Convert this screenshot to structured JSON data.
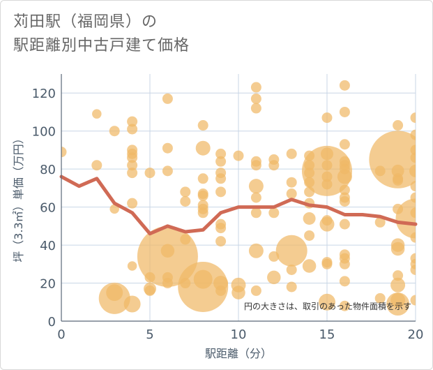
{
  "title_line1": "苅田駅（福岡県）の",
  "title_line2": "駅距離別中古戸建て価格",
  "chart_data": {
    "type": "scatter",
    "xlabel": "駅距離（分）",
    "ylabel": "坪（3.3㎡）単価（万円）",
    "xlim": [
      0,
      20
    ],
    "ylim": [
      0,
      130
    ],
    "xticks": [
      0,
      5,
      10,
      15,
      20
    ],
    "yticks": [
      0,
      20,
      40,
      60,
      80,
      100,
      120
    ],
    "grid": true,
    "annotation": "円の大きさは、取引のあった物件面積を示す",
    "colors": {
      "bubble": "#f0b967",
      "line": "#d06a55",
      "grid": "#c8d6e6",
      "axis": "#4a5a6a"
    },
    "line": {
      "x": [
        0,
        1,
        2,
        3,
        4,
        5,
        6,
        7,
        8,
        9,
        10,
        11,
        12,
        13,
        14,
        15,
        16,
        17,
        18,
        19,
        20
      ],
      "y": [
        76,
        71,
        75,
        62,
        57,
        46,
        50,
        47,
        48,
        57,
        60,
        60,
        60,
        64,
        61,
        60,
        56,
        56,
        55,
        52,
        51
      ]
    },
    "points": [
      {
        "x": 0,
        "y": 89,
        "s": 1
      },
      {
        "x": 2,
        "y": 109,
        "s": 0.9
      },
      {
        "x": 2,
        "y": 82,
        "s": 1
      },
      {
        "x": 3,
        "y": 100,
        "s": 1
      },
      {
        "x": 3,
        "y": 59,
        "s": 0.9
      },
      {
        "x": 3,
        "y": 15,
        "s": 1.6
      },
      {
        "x": 3,
        "y": 12,
        "s": 3
      },
      {
        "x": 4,
        "y": 105,
        "s": 1
      },
      {
        "x": 4,
        "y": 101,
        "s": 1
      },
      {
        "x": 4,
        "y": 90,
        "s": 1
      },
      {
        "x": 4,
        "y": 88,
        "s": 1
      },
      {
        "x": 4,
        "y": 86,
        "s": 1
      },
      {
        "x": 4,
        "y": 82,
        "s": 1
      },
      {
        "x": 4,
        "y": 78,
        "s": 1
      },
      {
        "x": 4,
        "y": 62,
        "s": 1
      },
      {
        "x": 4,
        "y": 29,
        "s": 0.9
      },
      {
        "x": 4,
        "y": 9,
        "s": 1.6
      },
      {
        "x": 5,
        "y": 78,
        "s": 1
      },
      {
        "x": 5,
        "y": 23,
        "s": 1
      },
      {
        "x": 5,
        "y": 17,
        "s": 1.2
      },
      {
        "x": 5,
        "y": 16,
        "s": 1
      },
      {
        "x": 6,
        "y": 117,
        "s": 1
      },
      {
        "x": 6,
        "y": 91,
        "s": 1
      },
      {
        "x": 6,
        "y": 79,
        "s": 1
      },
      {
        "x": 6,
        "y": 37,
        "s": 1.3
      },
      {
        "x": 6,
        "y": 34,
        "s": 5.8
      },
      {
        "x": 6,
        "y": 23,
        "s": 1
      },
      {
        "x": 6,
        "y": 20,
        "s": 1
      },
      {
        "x": 7,
        "y": 68,
        "s": 1
      },
      {
        "x": 7,
        "y": 63,
        "s": 1
      },
      {
        "x": 7,
        "y": 43,
        "s": 1
      },
      {
        "x": 7,
        "y": 20,
        "s": 1
      },
      {
        "x": 8,
        "y": 103,
        "s": 1
      },
      {
        "x": 8,
        "y": 91,
        "s": 1.4
      },
      {
        "x": 8,
        "y": 75,
        "s": 1
      },
      {
        "x": 8,
        "y": 67,
        "s": 1
      },
      {
        "x": 8,
        "y": 66,
        "s": 1
      },
      {
        "x": 8,
        "y": 61,
        "s": 1
      },
      {
        "x": 8,
        "y": 59,
        "s": 1
      },
      {
        "x": 8,
        "y": 57,
        "s": 1
      },
      {
        "x": 8,
        "y": 22,
        "s": 1.8
      },
      {
        "x": 8,
        "y": 18,
        "s": 4.8
      },
      {
        "x": 9,
        "y": 88,
        "s": 1
      },
      {
        "x": 9,
        "y": 84,
        "s": 1
      },
      {
        "x": 9,
        "y": 78,
        "s": 1
      },
      {
        "x": 9,
        "y": 75,
        "s": 1
      },
      {
        "x": 9,
        "y": 68,
        "s": 1
      },
      {
        "x": 9,
        "y": 51,
        "s": 1
      },
      {
        "x": 9,
        "y": 49,
        "s": 1
      },
      {
        "x": 9,
        "y": 42,
        "s": 1
      },
      {
        "x": 9,
        "y": 20,
        "s": 1.4
      },
      {
        "x": 9,
        "y": 16,
        "s": 1
      },
      {
        "x": 10,
        "y": 87,
        "s": 1
      },
      {
        "x": 10,
        "y": 19,
        "s": 1.4
      },
      {
        "x": 10,
        "y": 15,
        "s": 1.3
      },
      {
        "x": 11,
        "y": 123,
        "s": 1
      },
      {
        "x": 11,
        "y": 117,
        "s": 1
      },
      {
        "x": 11,
        "y": 112,
        "s": 1
      },
      {
        "x": 11,
        "y": 84,
        "s": 1
      },
      {
        "x": 11,
        "y": 82,
        "s": 1
      },
      {
        "x": 11,
        "y": 71,
        "s": 1.4
      },
      {
        "x": 11,
        "y": 65,
        "s": 1
      },
      {
        "x": 11,
        "y": 57,
        "s": 1
      },
      {
        "x": 11,
        "y": 37,
        "s": 1.4
      },
      {
        "x": 11,
        "y": 16,
        "s": 1
      },
      {
        "x": 12,
        "y": 85,
        "s": 1
      },
      {
        "x": 12,
        "y": 82,
        "s": 1
      },
      {
        "x": 12,
        "y": 57,
        "s": 1
      },
      {
        "x": 12,
        "y": 34,
        "s": 1
      },
      {
        "x": 12,
        "y": 23,
        "s": 1.3
      },
      {
        "x": 13,
        "y": 88,
        "s": 1
      },
      {
        "x": 13,
        "y": 73,
        "s": 1
      },
      {
        "x": 13,
        "y": 67,
        "s": 1
      },
      {
        "x": 13,
        "y": 37,
        "s": 3
      },
      {
        "x": 13,
        "y": 27,
        "s": 1
      },
      {
        "x": 13,
        "y": 18,
        "s": 1
      },
      {
        "x": 14,
        "y": 87,
        "s": 1
      },
      {
        "x": 14,
        "y": 82,
        "s": 1
      },
      {
        "x": 14,
        "y": 78,
        "s": 1
      },
      {
        "x": 14,
        "y": 73,
        "s": 1
      },
      {
        "x": 14,
        "y": 68,
        "s": 1
      },
      {
        "x": 14,
        "y": 62,
        "s": 1
      },
      {
        "x": 14,
        "y": 54,
        "s": 1.2
      },
      {
        "x": 14,
        "y": 45,
        "s": 1
      },
      {
        "x": 14,
        "y": 29,
        "s": 1.3
      },
      {
        "x": 15,
        "y": 107,
        "s": 1
      },
      {
        "x": 15,
        "y": 88,
        "s": 1.2
      },
      {
        "x": 15,
        "y": 82,
        "s": 1
      },
      {
        "x": 15,
        "y": 79,
        "s": 4.8
      },
      {
        "x": 15,
        "y": 76,
        "s": 1
      },
      {
        "x": 15,
        "y": 72,
        "s": 1
      },
      {
        "x": 15,
        "y": 53,
        "s": 1
      },
      {
        "x": 15,
        "y": 51,
        "s": 1.4
      },
      {
        "x": 15,
        "y": 31,
        "s": 1
      },
      {
        "x": 15,
        "y": 30,
        "s": 1
      },
      {
        "x": 15,
        "y": 10,
        "s": 1.6
      },
      {
        "x": 16,
        "y": 124,
        "s": 1
      },
      {
        "x": 16,
        "y": 110,
        "s": 1
      },
      {
        "x": 16,
        "y": 93,
        "s": 1
      },
      {
        "x": 16,
        "y": 84,
        "s": 1
      },
      {
        "x": 16,
        "y": 82,
        "s": 1
      },
      {
        "x": 16,
        "y": 80,
        "s": 1
      },
      {
        "x": 16,
        "y": 76,
        "s": 1.4
      },
      {
        "x": 16,
        "y": 69,
        "s": 1
      },
      {
        "x": 16,
        "y": 65,
        "s": 1
      },
      {
        "x": 16,
        "y": 63,
        "s": 1
      },
      {
        "x": 16,
        "y": 51,
        "s": 1
      },
      {
        "x": 16,
        "y": 35,
        "s": 1
      },
      {
        "x": 16,
        "y": 33,
        "s": 1
      },
      {
        "x": 16,
        "y": 30,
        "s": 1
      },
      {
        "x": 16,
        "y": 21,
        "s": 1
      },
      {
        "x": 16,
        "y": 8,
        "s": 1
      },
      {
        "x": 18,
        "y": 79,
        "s": 1
      },
      {
        "x": 18,
        "y": 52,
        "s": 1
      },
      {
        "x": 18,
        "y": 12,
        "s": 1
      },
      {
        "x": 19,
        "y": 103,
        "s": 1
      },
      {
        "x": 19,
        "y": 85,
        "s": 5.5
      },
      {
        "x": 19,
        "y": 79,
        "s": 1.2
      },
      {
        "x": 19,
        "y": 75,
        "s": 1
      },
      {
        "x": 19,
        "y": 74,
        "s": 1
      },
      {
        "x": 19,
        "y": 59,
        "s": 1
      },
      {
        "x": 19,
        "y": 40,
        "s": 1.3
      },
      {
        "x": 19,
        "y": 38,
        "s": 1.3
      },
      {
        "x": 19,
        "y": 24,
        "s": 1
      },
      {
        "x": 19,
        "y": 19,
        "s": 1.4
      },
      {
        "x": 19,
        "y": 11,
        "s": 1.4
      },
      {
        "x": 19,
        "y": 9,
        "s": 2.2
      },
      {
        "x": 20,
        "y": 107,
        "s": 1
      },
      {
        "x": 20,
        "y": 98,
        "s": 1
      },
      {
        "x": 20,
        "y": 90,
        "s": 1
      },
      {
        "x": 20,
        "y": 86,
        "s": 1
      },
      {
        "x": 20,
        "y": 79,
        "s": 1.2
      },
      {
        "x": 20,
        "y": 71,
        "s": 1
      },
      {
        "x": 20,
        "y": 65,
        "s": 1
      },
      {
        "x": 20,
        "y": 57,
        "s": 1
      },
      {
        "x": 20,
        "y": 54,
        "s": 3.8
      },
      {
        "x": 20,
        "y": 44,
        "s": 1
      },
      {
        "x": 20,
        "y": 33,
        "s": 1
      },
      {
        "x": 20,
        "y": 30,
        "s": 1
      },
      {
        "x": 20,
        "y": 27,
        "s": 1
      },
      {
        "x": 20,
        "y": 11,
        "s": 1
      }
    ]
  }
}
